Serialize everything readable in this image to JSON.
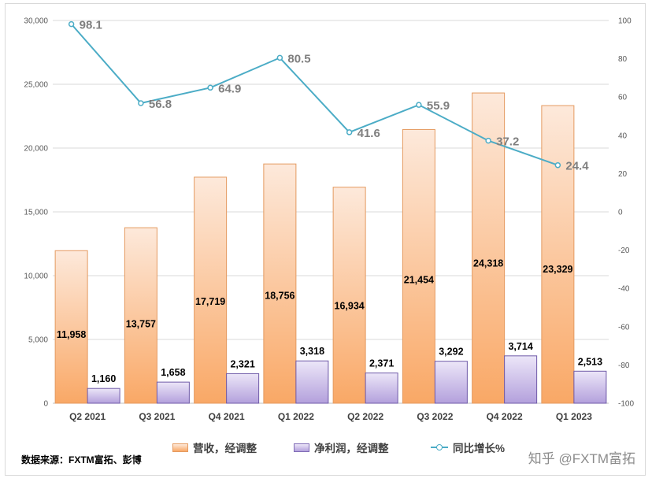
{
  "chart_data": {
    "type": "bar+line",
    "categories": [
      "Q2 2021",
      "Q3 2021",
      "Q4 2021",
      "Q1 2022",
      "Q2 2022",
      "Q3 2022",
      "Q4 2022",
      "Q1 2023"
    ],
    "series": [
      {
        "name": "营收，经调整",
        "type": "bar",
        "axis": "left",
        "color": "#f8b07c",
        "values": [
          11958,
          13757,
          17719,
          18756,
          16934,
          21454,
          24318,
          23329
        ],
        "labels": [
          "11,958",
          "13,757",
          "17,719",
          "18,756",
          "16,934",
          "21,454",
          "24,318",
          "23,329"
        ]
      },
      {
        "name": "净利润，经调整",
        "type": "bar",
        "axis": "left",
        "color": "#b9a7de",
        "values": [
          1160,
          1658,
          2321,
          3318,
          2371,
          3292,
          3714,
          2513
        ],
        "labels": [
          "1,160",
          "1,658",
          "2,321",
          "3,318",
          "2,371",
          "3,292",
          "3,714",
          "2,513"
        ]
      },
      {
        "name": "同比增长%",
        "type": "line",
        "axis": "right",
        "color": "#4bacc6",
        "values": [
          98.1,
          56.8,
          64.9,
          80.5,
          41.6,
          55.9,
          37.2,
          24.4
        ],
        "labels": [
          "98.1",
          "56.8",
          "64.9",
          "80.5",
          "41.6",
          "55.9",
          "37.2",
          "24.4"
        ]
      }
    ],
    "ylim_left": [
      0,
      30000
    ],
    "yticks_left": [
      "0",
      "5,000",
      "10,000",
      "15,000",
      "20,000",
      "25,000",
      "30,000"
    ],
    "ylim_right": [
      -100,
      100
    ],
    "yticks_right": [
      "-100",
      "-80",
      "-60",
      "-40",
      "-20",
      "0",
      "20",
      "40",
      "60",
      "80",
      "100"
    ],
    "grid": true,
    "legend_position": "bottom"
  },
  "footer": {
    "source": "数据来源：FXTM富拓、彭博",
    "watermark": "知乎 @FXTM富拓"
  }
}
